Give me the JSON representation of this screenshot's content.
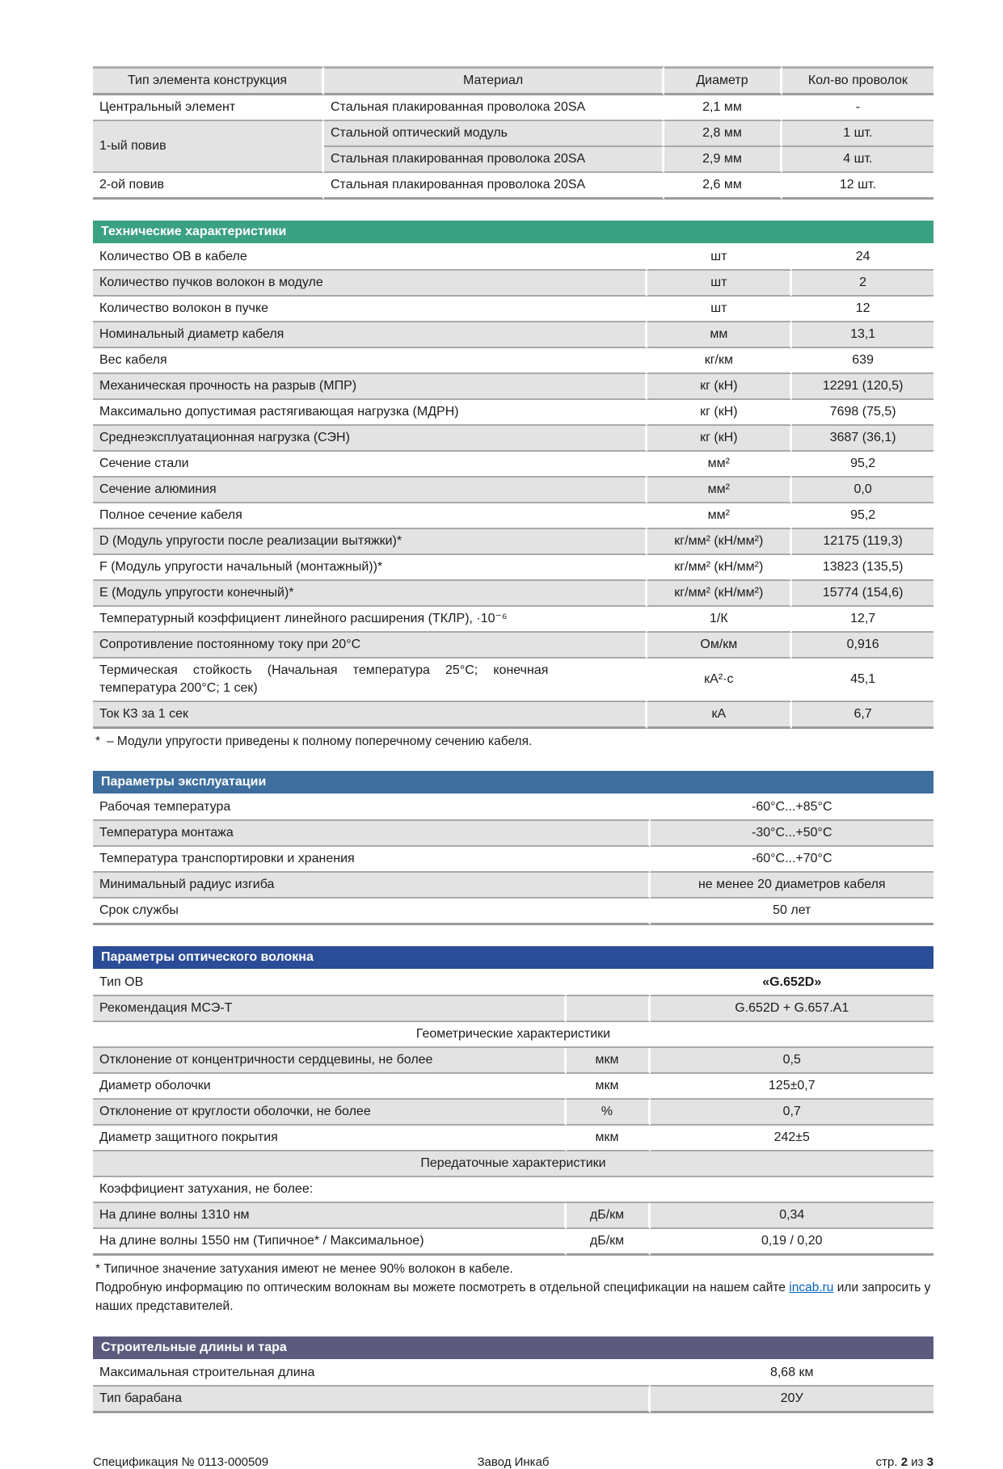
{
  "construction_table": {
    "headers": {
      "type": "Тип элемента конструкция",
      "material": "Материал",
      "diameter": "Диаметр",
      "count": "Кол-во проволок"
    },
    "groups": [
      {
        "type": "Центральный элемент",
        "shaded": false,
        "entries": [
          {
            "material": "Стальная плакированная проволока 20SA",
            "diameter": "2,1 мм",
            "count": "-"
          }
        ]
      },
      {
        "type": "1-ый повив",
        "shaded": true,
        "entries": [
          {
            "material": "Стальной оптический модуль",
            "diameter": "2,8 мм",
            "count": "1 шт."
          },
          {
            "material": "Стальная плакированная проволока 20SA",
            "diameter": "2,9 мм",
            "count": "4 шт."
          }
        ]
      },
      {
        "type": "2-ой повив",
        "shaded": false,
        "entries": [
          {
            "material": "Стальная плакированная проволока 20SA",
            "diameter": "2,6 мм",
            "count": "12 шт."
          }
        ]
      }
    ]
  },
  "sections": {
    "tech": {
      "title": "Технические характеристики",
      "color": "#3AA183",
      "rows": [
        {
          "label": "Количество ОВ в кабеле",
          "unit": "шт",
          "value": "24"
        },
        {
          "label": "Количество пучков волокон в модуле",
          "unit": "шт",
          "value": "2"
        },
        {
          "label": "Количество волокон в пучке",
          "unit": "шт",
          "value": "12"
        },
        {
          "label": "Номинальный диаметр кабеля",
          "unit": "мм",
          "value": "13,1"
        },
        {
          "label": "Вес кабеля",
          "unit": "кг/км",
          "value": "639"
        },
        {
          "label": "Механическая прочность на разрыв (МПР)",
          "unit": "кг (кН)",
          "value": "12291 (120,5)"
        },
        {
          "label": "Максимально допустимая растягивающая нагрузка (МДРН)",
          "unit": "кг (кН)",
          "value": "7698 (75,5)"
        },
        {
          "label": "Среднеэксплуатационная нагрузка (СЭН)",
          "unit": "кг (кН)",
          "value": "3687 (36,1)"
        },
        {
          "label": "Сечение стали",
          "unit": "мм²",
          "value": "95,2"
        },
        {
          "label": "Сечение алюминия",
          "unit": "мм²",
          "value": "0,0"
        },
        {
          "label": "Полное сечение кабеля",
          "unit": "мм²",
          "value": "95,2"
        },
        {
          "label": "D (Модуль упругости после реализации вытяжки)*",
          "unit": "кг/мм² (кН/мм²)",
          "value": "12175 (119,3)"
        },
        {
          "label": "F (Модуль упругости начальный (монтажный))*",
          "unit": "кг/мм² (кН/мм²)",
          "value": "13823 (135,5)"
        },
        {
          "label": "E (Модуль упругости конечный)*",
          "unit": "кг/мм² (кН/мм²)",
          "value": "15774 (154,6)"
        },
        {
          "label": "Температурный коэффициент линейного расширения (ТКЛР), ·10⁻⁶",
          "unit": "1/К",
          "value": "12,7"
        },
        {
          "label": "Сопротивление постоянному току при 20°С",
          "unit": "Ом/км",
          "value": "0,916"
        },
        {
          "label": "Термическая стойкость (Начальная температура 25°С; конечная температура 200°С; 1 сек)",
          "unit": "кА²·с",
          "value": "45,1"
        },
        {
          "label": "Ток КЗ за 1 сек",
          "unit": "кА",
          "value": "6,7"
        }
      ],
      "footnote_star": "*",
      "footnote": "– Модули упругости приведены к полному поперечному сечению кабеля."
    },
    "operation": {
      "title": "Параметры эксплуатации",
      "color": "#3D6E9E",
      "rows": [
        {
          "label": "Рабочая температура",
          "value": "-60°С...+85°С"
        },
        {
          "label": "Температура монтажа",
          "value": "-30°С...+50°С"
        },
        {
          "label": "Температура транспортировки и хранения",
          "value": "-60°С...+70°С"
        },
        {
          "label": "Минимальный радиус изгиба",
          "value": "не менее 20 диаметров кабеля"
        },
        {
          "label": "Срок службы",
          "value": "50 лет"
        }
      ]
    },
    "fiber": {
      "title": "Параметры оптического волокна",
      "color": "#2B4C96",
      "rows": [
        {
          "kind": "data",
          "label": "Тип ОВ",
          "unit": "",
          "value": "«G.652D»",
          "bold": true
        },
        {
          "kind": "data",
          "label": "Рекомендация МСЭ-Т",
          "unit": "",
          "value": "G.652D + G.657.A1"
        },
        {
          "kind": "section",
          "label": "Геометрические характеристики"
        },
        {
          "kind": "data",
          "label": "Отклонение от концентричности сердцевины, не более",
          "unit": "мкм",
          "value": "0,5"
        },
        {
          "kind": "data",
          "label": "Диаметр оболочки",
          "unit": "мкм",
          "value": "125±0,7"
        },
        {
          "kind": "data",
          "label": "Отклонение от круглости оболочки, не более",
          "unit": "%",
          "value": "0,7"
        },
        {
          "kind": "data",
          "label": "Диаметр защитного покрытия",
          "unit": "мкм",
          "value": "242±5"
        },
        {
          "kind": "section",
          "label": "Передаточные характеристики"
        },
        {
          "kind": "label_only",
          "label": "Коэффициент затухания, не более:"
        },
        {
          "kind": "data",
          "label": "На длине волны 1310 нм",
          "unit": "дБ/км",
          "value": "0,34"
        },
        {
          "kind": "data",
          "label": "На длине волны 1550 нм (Типичное* / Максимальное)",
          "unit": "дБ/км",
          "value": "0,19 / 0,20"
        }
      ],
      "notes": {
        "attenuation": "* Типичное значение затухания имеют не менее 90% волокон в кабеле.",
        "info_prefix": "Подробную информацию по оптическим волокнам вы можете посмотреть в отдельной спецификации на нашем сайте ",
        "info_link": "incab.ru",
        "info_suffix": " или запросить у наших представителей."
      }
    },
    "lengths": {
      "title": "Строительные длины и тара",
      "color": "#5C5B7D",
      "rows": [
        {
          "label": "Максимальная строительная длина",
          "value": "8,68 км"
        },
        {
          "label": "Тип барабана",
          "value": "20У"
        }
      ]
    }
  },
  "footer": {
    "left": "Спецификация № 0113-000509",
    "center": "Завод Инкаб",
    "page_prefix": "стр. ",
    "page_number": "2",
    "page_separator": " из ",
    "page_total": "3"
  }
}
